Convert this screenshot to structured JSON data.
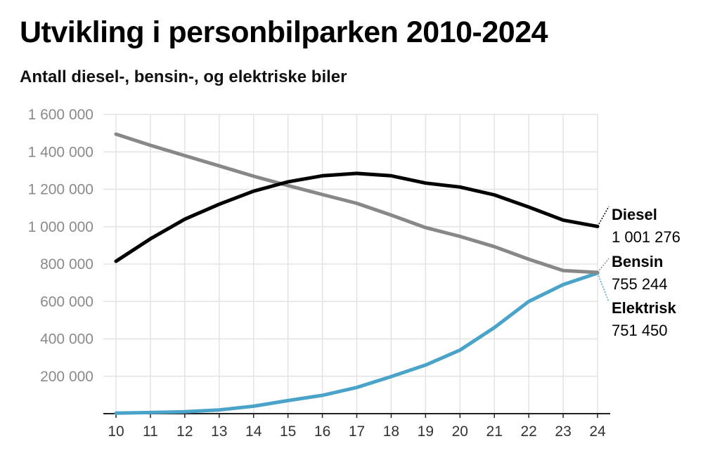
{
  "chart_data": {
    "type": "line",
    "title": "Utvikling i personbilparken 2010-2024",
    "subtitle": "Antall diesel-, bensin-, og elektriske biler",
    "x": [
      "10",
      "11",
      "12",
      "13",
      "14",
      "15",
      "16",
      "17",
      "18",
      "19",
      "20",
      "21",
      "22",
      "23",
      "24"
    ],
    "ylim": [
      0,
      1600000
    ],
    "yticks": [
      200000,
      400000,
      600000,
      800000,
      1000000,
      1200000,
      1400000,
      1600000
    ],
    "ytick_labels": [
      "200 000",
      "400 000",
      "600 000",
      "800 000",
      "1 000 000",
      "1 200 000",
      "1 400 000",
      "1 600 000"
    ],
    "grid": true,
    "series": [
      {
        "name": "Diesel",
        "color": "#000000",
        "end_label": "1 001 276",
        "values": [
          815000,
          935000,
          1040000,
          1120000,
          1190000,
          1240000,
          1272000,
          1285000,
          1272000,
          1233000,
          1212000,
          1170000,
          1105000,
          1035000,
          1001276
        ]
      },
      {
        "name": "Bensin",
        "color": "#888888",
        "end_label": "755 244",
        "values": [
          1495000,
          1435000,
          1380000,
          1325000,
          1270000,
          1220000,
          1172000,
          1125000,
          1062000,
          995000,
          948000,
          893000,
          826000,
          765000,
          755244
        ]
      },
      {
        "name": "Elektrisk",
        "color": "#4aa3c9",
        "end_label": "751 450",
        "values": [
          3000,
          6000,
          10000,
          20000,
          40000,
          70000,
          98000,
          140000,
          198000,
          260000,
          340000,
          460000,
          600000,
          690000,
          751450
        ]
      }
    ]
  }
}
